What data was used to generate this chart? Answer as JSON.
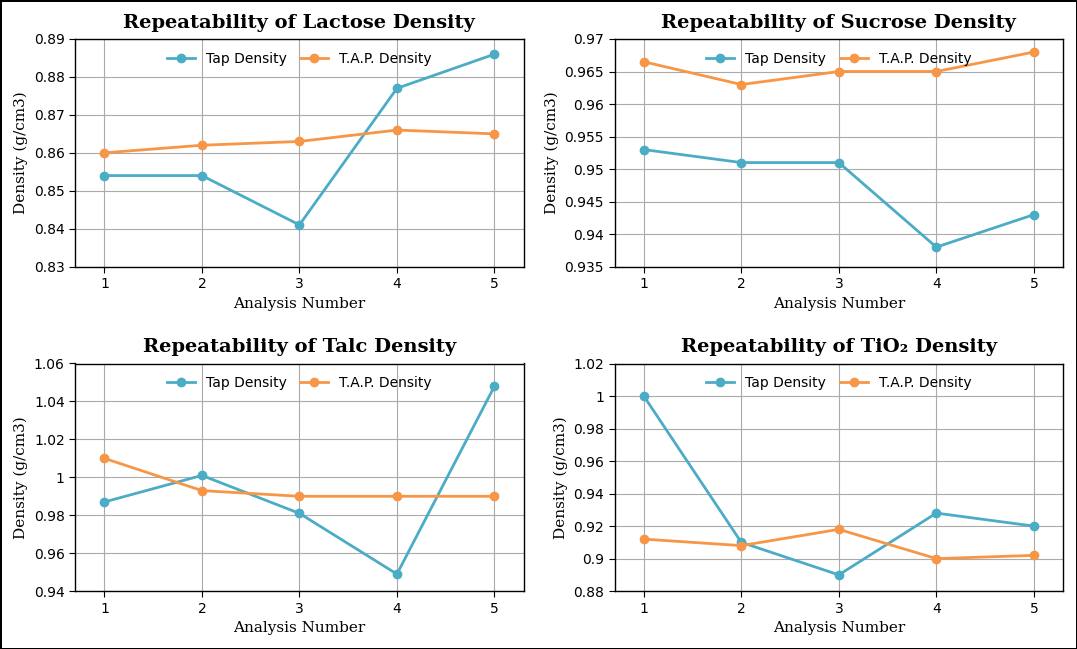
{
  "subplots": [
    {
      "title": "Repeatability of Lactose Density",
      "x": [
        1,
        2,
        3,
        4,
        5
      ],
      "tap": [
        0.854,
        0.854,
        0.841,
        0.877,
        0.886
      ],
      "tap_density": [
        0.86,
        0.862,
        0.863,
        0.866,
        0.865
      ],
      "ylim": [
        0.83,
        0.89
      ],
      "yticks": [
        0.83,
        0.84,
        0.85,
        0.86,
        0.87,
        0.88,
        0.89
      ],
      "ytick_labels": [
        "0.83",
        "0.84",
        "0.85",
        "0.86",
        "0.87",
        "0.88",
        "0.89"
      ]
    },
    {
      "title": "Repeatability of Sucrose Density",
      "x": [
        1,
        2,
        3,
        4,
        5
      ],
      "tap": [
        0.953,
        0.951,
        0.951,
        0.938,
        0.943
      ],
      "tap_density": [
        0.9665,
        0.963,
        0.965,
        0.965,
        0.968
      ],
      "ylim": [
        0.935,
        0.97
      ],
      "yticks": [
        0.935,
        0.94,
        0.945,
        0.95,
        0.955,
        0.96,
        0.965,
        0.97
      ],
      "ytick_labels": [
        "0.935",
        "0.94",
        "0.945",
        "0.95",
        "0.955",
        "0.96",
        "0.965",
        "0.97"
      ]
    },
    {
      "title": "Repeatability of Talc Density",
      "x": [
        1,
        2,
        3,
        4,
        5
      ],
      "tap": [
        0.987,
        1.001,
        0.981,
        0.949,
        1.048
      ],
      "tap_density": [
        1.01,
        0.993,
        0.99,
        0.99,
        0.99
      ],
      "ylim": [
        0.94,
        1.06
      ],
      "yticks": [
        0.94,
        0.96,
        0.98,
        1.0,
        1.02,
        1.04,
        1.06
      ],
      "ytick_labels": [
        "0.94",
        "0.96",
        "0.98",
        "1",
        "1.02",
        "1.04",
        "1.06"
      ]
    },
    {
      "title": "Repeatability of TiO₂ Density",
      "x": [
        1,
        2,
        3,
        4,
        5
      ],
      "tap": [
        1.0,
        0.91,
        0.89,
        0.928,
        0.92
      ],
      "tap_density": [
        0.912,
        0.908,
        0.918,
        0.9,
        0.902
      ],
      "ylim": [
        0.88,
        1.02
      ],
      "yticks": [
        0.88,
        0.9,
        0.92,
        0.94,
        0.96,
        0.98,
        1.0,
        1.02
      ],
      "ytick_labels": [
        "0.88",
        "0.9",
        "0.92",
        "0.94",
        "0.96",
        "0.98",
        "1",
        "1.02"
      ]
    }
  ],
  "tap_color": "#4bacc6",
  "tap_density_color": "#f79646",
  "tap_label": "Tap Density",
  "tap_density_label": "T.A.P. Density",
  "xlabel": "Analysis Number",
  "ylabel": "Density (g/cm3)",
  "title_fontsize": 14,
  "label_fontsize": 11,
  "tick_fontsize": 10,
  "legend_fontsize": 10,
  "marker": "o",
  "linewidth": 2,
  "markersize": 6,
  "grid_color": "#aaaaaa",
  "bg_color": "#ffffff",
  "border_color": "#000000"
}
